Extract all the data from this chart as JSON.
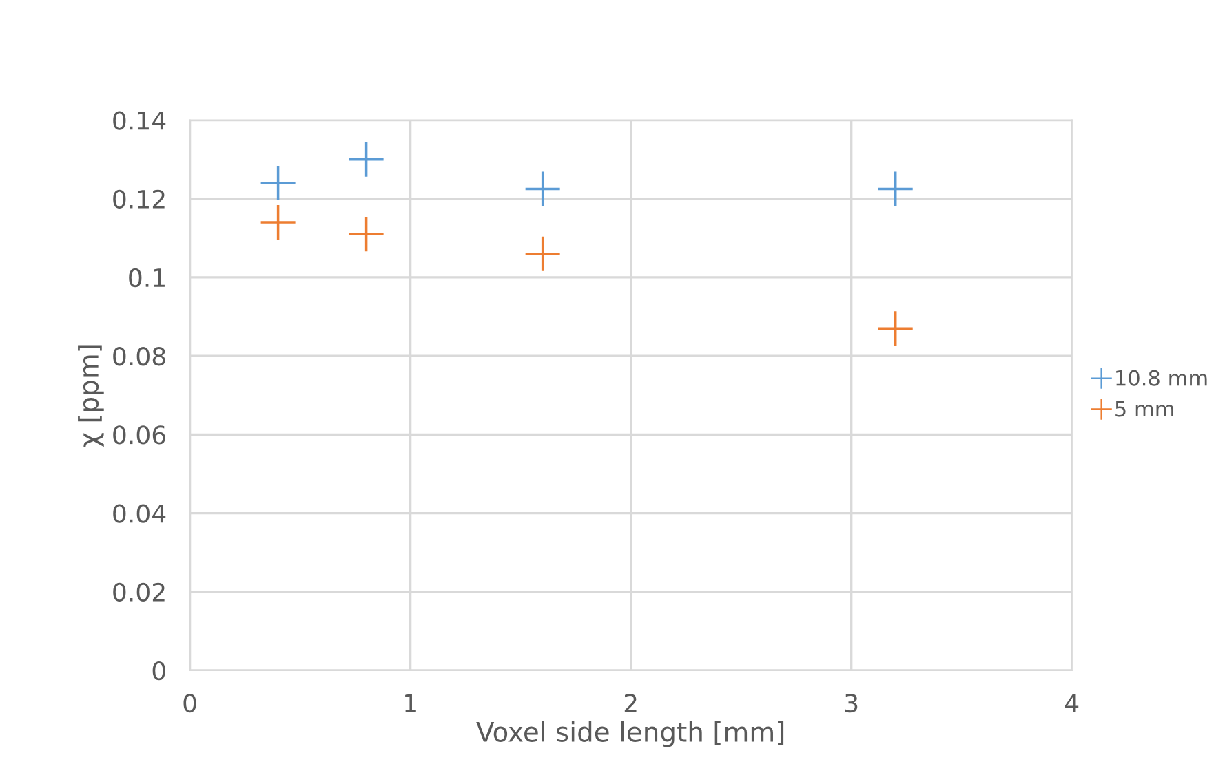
{
  "chart_data": {
    "type": "scatter",
    "xlabel": "Voxel side length [mm]",
    "ylabel": "χ [ppm]",
    "x": [
      0.4,
      0.8,
      1.6,
      3.2
    ],
    "series": [
      {
        "name": "10.8 mm",
        "color": "#5b9bd5",
        "values": [
          0.124,
          0.13,
          0.1225,
          0.1225
        ]
      },
      {
        "name": "5 mm",
        "color": "#ed7d31",
        "values": [
          0.114,
          0.111,
          0.106,
          0.087
        ]
      }
    ],
    "xlim": [
      0,
      4
    ],
    "xticks": [
      0,
      1,
      2,
      3,
      4
    ],
    "ylim": [
      0,
      0.14
    ],
    "yticks": [
      0,
      {
        "value": 0.02,
        "label": "0.02"
      },
      {
        "value": 0.04,
        "label": "0.04"
      },
      {
        "value": 0.06,
        "label": "0.06"
      },
      {
        "value": 0.08,
        "label": "0.08"
      },
      {
        "value": 0.1,
        "label": "0.1"
      },
      {
        "value": 0.12,
        "label": "0.12"
      },
      {
        "value": 0.14,
        "label": "0.14"
      }
    ],
    "grid": true,
    "legend": "right",
    "marker": "cross"
  }
}
